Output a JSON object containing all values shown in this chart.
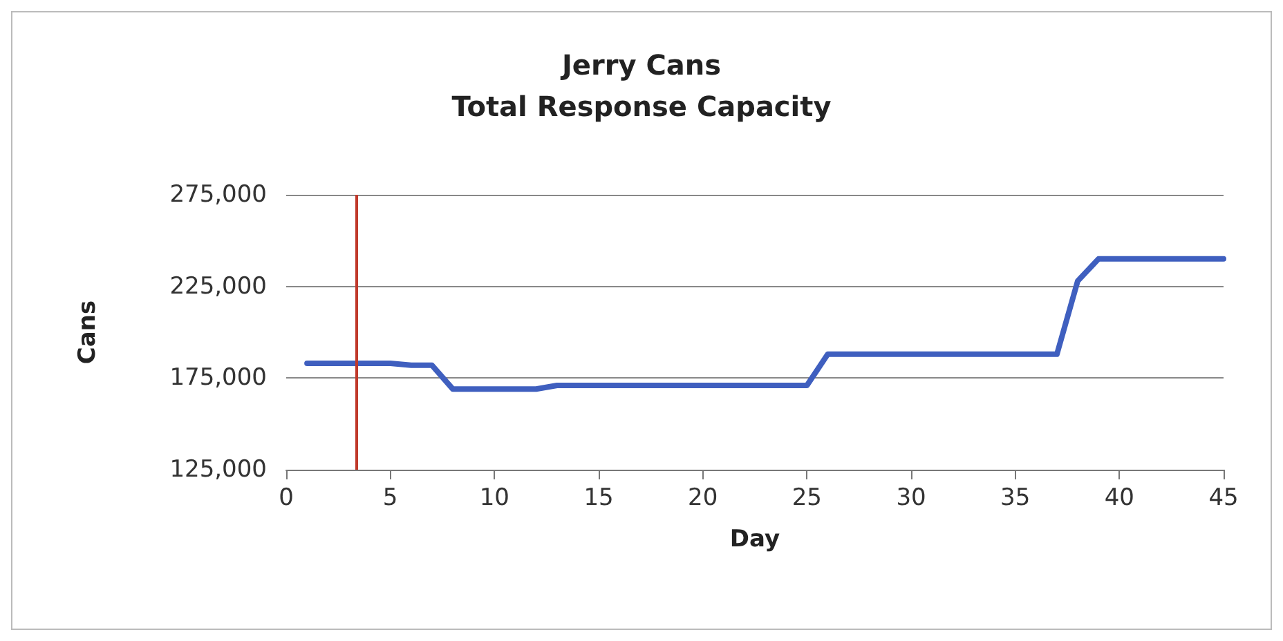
{
  "chart_data": {
    "type": "line",
    "title": "Jerry Cans\nTotal Response Capacity",
    "xlabel": "Day",
    "ylabel": "Cans",
    "x": [
      1,
      5,
      6,
      7,
      8,
      12,
      13,
      25,
      26,
      37,
      38,
      39,
      45
    ],
    "series": [
      {
        "color": "#3f5fbf",
        "values": [
          183000,
          183000,
          182000,
          182000,
          169000,
          169000,
          171000,
          171000,
          188000,
          188000,
          228000,
          240000,
          240000
        ]
      }
    ],
    "xlim": [
      0,
      45
    ],
    "xticks": [
      0,
      5,
      10,
      15,
      20,
      25,
      30,
      35,
      40,
      45
    ],
    "ylim": [
      125000,
      275000
    ],
    "yticks": [
      {
        "value": 125000,
        "label": "125,000"
      },
      {
        "value": 175000,
        "label": "175,000"
      },
      {
        "value": 225000,
        "label": "225,000"
      },
      {
        "value": 275000,
        "label": "275,000"
      }
    ],
    "grid": "y",
    "marker": "none",
    "line_style": "solid",
    "ref_lines": [
      {
        "axis": "x",
        "value": 3.4,
        "color": "#c0392b"
      }
    ]
  }
}
